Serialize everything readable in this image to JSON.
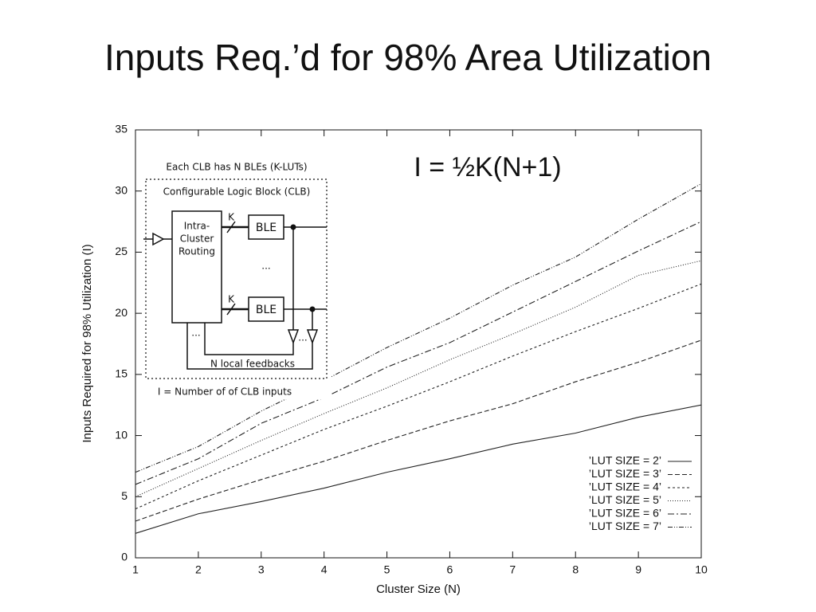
{
  "chart_data": {
    "type": "line",
    "title": "Inputs Req.’d for 98% Area Utilization",
    "annotation": "I = ½K(N+1)",
    "xlabel": "Cluster Size (N)",
    "ylabel": "Inputs Required for 98% Utilization (I)",
    "x": [
      1,
      2,
      3,
      4,
      5,
      6,
      7,
      8,
      9,
      10
    ],
    "xlim": [
      1,
      10
    ],
    "xticks": [
      1,
      2,
      3,
      4,
      5,
      6,
      7,
      8,
      9,
      10
    ],
    "ylim": [
      0,
      35
    ],
    "yticks": [
      0,
      5,
      10,
      15,
      20,
      25,
      30,
      35
    ],
    "grid": false,
    "legend": "lower right",
    "series": [
      {
        "name": "’LUT SIZE = 2’",
        "color": "#222222",
        "dash": "none",
        "values": [
          2.0,
          3.6,
          4.6,
          5.7,
          7.0,
          8.1,
          9.3,
          10.2,
          11.5,
          12.5
        ]
      },
      {
        "name": "’LUT SIZE = 3’",
        "color": "#222222",
        "dash": "6,3",
        "values": [
          3.0,
          4.8,
          6.4,
          7.9,
          9.6,
          11.2,
          12.6,
          14.4,
          16.0,
          17.8
        ]
      },
      {
        "name": "’LUT SIZE = 4’",
        "color": "#222222",
        "dash": "3,3",
        "values": [
          4.0,
          6.3,
          8.4,
          10.5,
          12.4,
          14.4,
          16.5,
          18.5,
          20.4,
          22.4
        ]
      },
      {
        "name": "’LUT SIZE = 5’",
        "color": "#222222",
        "dash": "1,2",
        "values": [
          5.0,
          7.3,
          9.6,
          11.8,
          13.9,
          16.2,
          18.3,
          20.5,
          23.1,
          24.3
        ]
      },
      {
        "name": "’LUT SIZE = 6’",
        "color": "#222222",
        "dash": "8,3,2,3",
        "values": [
          6.0,
          8.1,
          11.0,
          13.1,
          15.6,
          17.6,
          20.1,
          22.6,
          25.1,
          27.5
        ]
      },
      {
        "name": "’LUT SIZE = 7’",
        "color": "#222222",
        "dash": "6,2,1,2,1,2",
        "values": [
          7.0,
          9.1,
          12.0,
          14.5,
          17.2,
          19.6,
          22.3,
          24.6,
          27.7,
          30.6
        ]
      }
    ]
  },
  "inset": {
    "caption": "Each CLB has N BLEs (K-LUTs)",
    "block_title": "Configurable Logic Block (CLB)",
    "routing": [
      "Intra-",
      "Cluster",
      "Routing"
    ],
    "k_top": "K",
    "ble_top": "BLE",
    "dots_mid": "...",
    "k_bottom": "K",
    "ble_bottom": "BLE",
    "dots_buffers": "...",
    "dots_routing": "...",
    "feedback": "N local feedbacks",
    "footnote": "I = Number of  of CLB inputs"
  }
}
